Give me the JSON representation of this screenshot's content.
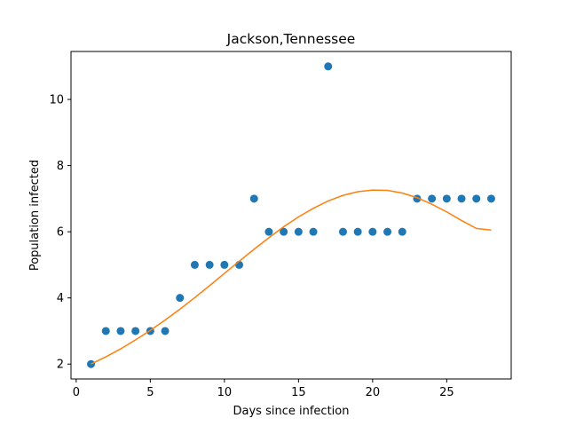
{
  "chart_data": {
    "type": "scatter",
    "title": "Jackson,Tennessee",
    "xlabel": "Days since infection",
    "ylabel": "Population infected",
    "xlim": [
      -0.35,
      29.35
    ],
    "ylim": [
      1.55,
      11.45
    ],
    "xticks": [
      0,
      5,
      10,
      15,
      20,
      25
    ],
    "yticks": [
      2,
      4,
      6,
      8,
      10
    ],
    "grid": false,
    "series": [
      {
        "kind": "scatter",
        "color": "#1f77b4",
        "x": [
          1,
          2,
          3,
          4,
          5,
          6,
          7,
          8,
          9,
          10,
          11,
          12,
          13,
          14,
          15,
          16,
          17,
          18,
          19,
          20,
          21,
          22,
          23,
          24,
          25,
          26,
          27,
          28
        ],
        "y": [
          2,
          3,
          3,
          3,
          3,
          3,
          4,
          5,
          5,
          5,
          5,
          7,
          6,
          6,
          6,
          6,
          11,
          6,
          6,
          6,
          6,
          6,
          7,
          7,
          7,
          7,
          7,
          7
        ]
      },
      {
        "kind": "line",
        "color": "#ff7f0e",
        "x": [
          1,
          2,
          3,
          4,
          5,
          6,
          7,
          8,
          9,
          10,
          11,
          12,
          13,
          14,
          15,
          16,
          17,
          18,
          19,
          20,
          21,
          22,
          23,
          24,
          25,
          26,
          27,
          28
        ],
        "y": [
          2.0,
          2.22,
          2.46,
          2.73,
          3.02,
          3.33,
          3.66,
          4.01,
          4.37,
          4.74,
          5.11,
          5.47,
          5.82,
          6.15,
          6.45,
          6.71,
          6.93,
          7.1,
          7.21,
          7.26,
          7.25,
          7.17,
          7.03,
          6.83,
          6.6,
          6.34,
          6.1,
          6.05
        ]
      }
    ]
  }
}
